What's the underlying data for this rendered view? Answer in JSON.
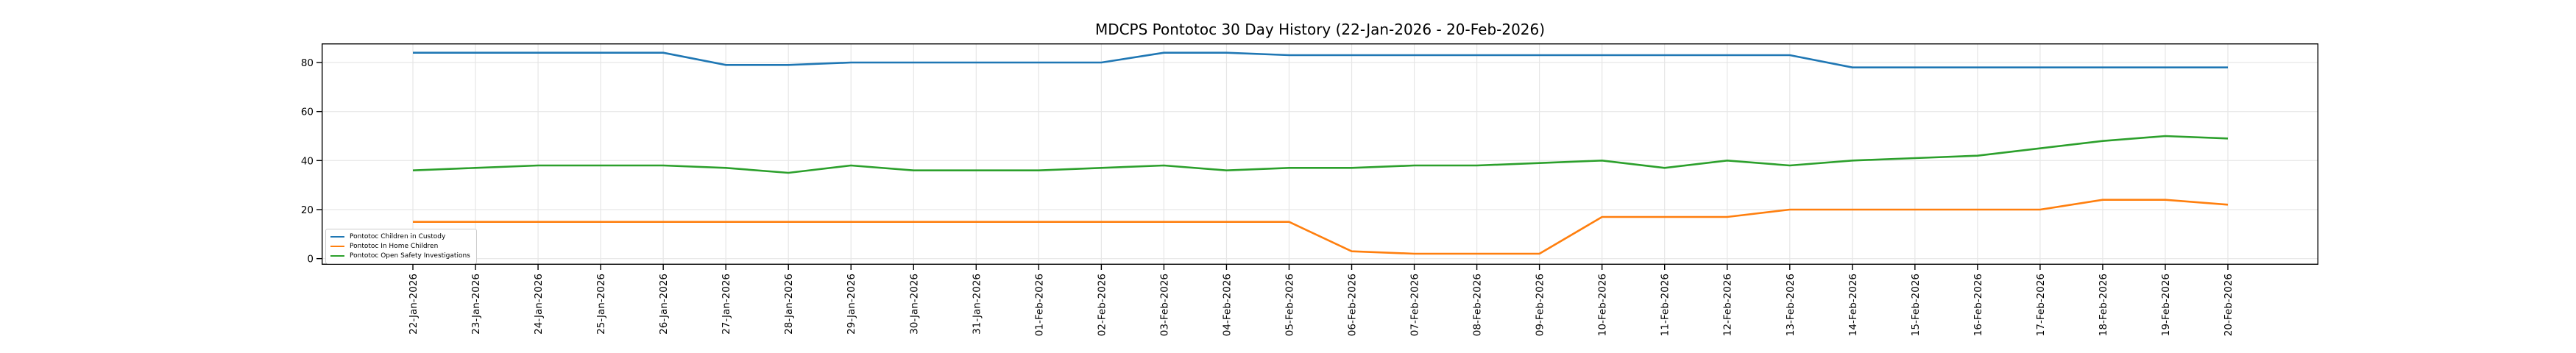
{
  "chart_data": {
    "type": "line",
    "title": "MDCPS Pontotoc 30 Day History (22-Jan-2026 - 20-Feb-2026)",
    "x": [
      "22-Jan-2026",
      "23-Jan-2026",
      "24-Jan-2026",
      "25-Jan-2026",
      "26-Jan-2026",
      "27-Jan-2026",
      "28-Jan-2026",
      "29-Jan-2026",
      "30-Jan-2026",
      "31-Jan-2026",
      "01-Feb-2026",
      "02-Feb-2026",
      "03-Feb-2026",
      "04-Feb-2026",
      "05-Feb-2026",
      "06-Feb-2026",
      "07-Feb-2026",
      "08-Feb-2026",
      "09-Feb-2026",
      "10-Feb-2026",
      "11-Feb-2026",
      "12-Feb-2026",
      "13-Feb-2026",
      "14-Feb-2026",
      "15-Feb-2026",
      "16-Feb-2026",
      "17-Feb-2026",
      "18-Feb-2026",
      "19-Feb-2026",
      "20-Feb-2026"
    ],
    "series": [
      {
        "name": "Pontotoc Children in Custody",
        "color": "#1f77b4",
        "values": [
          84,
          84,
          84,
          84,
          84,
          79,
          79,
          80,
          80,
          80,
          80,
          80,
          84,
          84,
          83,
          83,
          83,
          83,
          83,
          83,
          83,
          83,
          83,
          78,
          78,
          78,
          78,
          78,
          78,
          78
        ]
      },
      {
        "name": "Pontotoc In Home Children",
        "color": "#ff7f0e",
        "values": [
          15,
          15,
          15,
          15,
          15,
          15,
          15,
          15,
          15,
          15,
          15,
          15,
          15,
          15,
          15,
          3,
          2,
          2,
          2,
          17,
          17,
          17,
          20,
          20,
          20,
          20,
          20,
          24,
          24,
          22
        ]
      },
      {
        "name": "Pontotoc Open Safety Investigations",
        "color": "#2ca02c",
        "values": [
          36,
          37,
          38,
          38,
          38,
          37,
          35,
          38,
          36,
          36,
          36,
          37,
          38,
          36,
          37,
          37,
          38,
          38,
          39,
          40,
          37,
          40,
          38,
          40,
          41,
          42,
          45,
          48,
          50,
          49
        ]
      }
    ],
    "yticks": [
      0,
      20,
      40,
      60,
      80
    ],
    "ylim": [
      -2.5,
      87.8
    ],
    "grid": true,
    "grid_color": "#e6e6e6",
    "axis_color": "#000000",
    "legend_position": "lower left",
    "xlabel": "",
    "ylabel": ""
  }
}
